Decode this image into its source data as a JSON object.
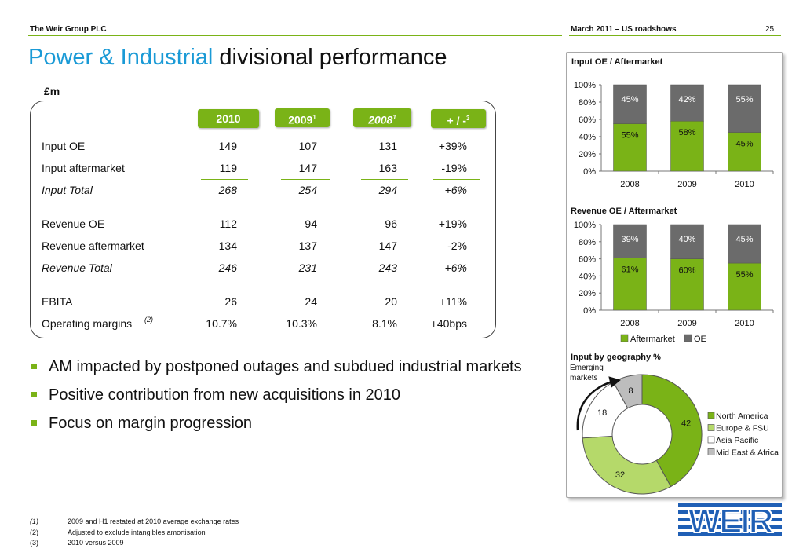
{
  "header": {
    "company": "The Weir Group PLC",
    "event": "March 2011 – US roadshows",
    "page": "25"
  },
  "title": {
    "highlight": "Power & Industrial",
    "rest": "divisional performance"
  },
  "table": {
    "units": "£m",
    "headers": [
      {
        "text": "2010",
        "sup": ""
      },
      {
        "text": "2009",
        "sup": "1"
      },
      {
        "text": "2008",
        "sup": "1"
      },
      {
        "text": "+ / -",
        "sup": "3"
      }
    ],
    "rows": [
      {
        "label": "Input OE",
        "v2010": "149",
        "v2009": "107",
        "v2008": "131",
        "change": "+39%"
      },
      {
        "label": "Input aftermarket",
        "v2010": "119",
        "v2009": "147",
        "v2008": "163",
        "change": "-19%"
      },
      {
        "label": "Input Total",
        "v2010": "268",
        "v2009": "254",
        "v2008": "294",
        "change": "+6%"
      },
      {
        "label": "Revenue OE",
        "v2010": "112",
        "v2009": "94",
        "v2008": "96",
        "change": "+19%"
      },
      {
        "label": "Revenue aftermarket",
        "v2010": "134",
        "v2009": "137",
        "v2008": "147",
        "change": "-2%"
      },
      {
        "label": "Revenue Total",
        "v2010": "246",
        "v2009": "231",
        "v2008": "243",
        "change": "+6%"
      },
      {
        "label": "EBITA",
        "v2010": "26",
        "v2009": "24",
        "v2008": "20",
        "change": "+11%"
      },
      {
        "label": "Operating margins",
        "label_sup": "(2)",
        "v2010": "10.7%",
        "v2009": "10.3%",
        "v2008": "8.1%",
        "change": "+40bps"
      }
    ]
  },
  "bullets": [
    "AM impacted by postponed outages and subdued industrial markets",
    "Positive contribution from new acquisitions in 2010",
    "Focus on margin progression"
  ],
  "colors": {
    "green": "#7ab317",
    "blue": "#1a9ad6",
    "grey": "#6b6b6b",
    "light_green": "#b5d96a",
    "light_grey": "#bdbdbd",
    "logo_blue": "#1f5fb5"
  },
  "chart_data": [
    {
      "type": "bar",
      "title": "Input OE / Aftermarket",
      "categories": [
        "2008",
        "2009",
        "2010"
      ],
      "yticks": [
        "0%",
        "20%",
        "40%",
        "60%",
        "80%",
        "100%"
      ],
      "ylim": [
        0,
        100
      ],
      "series": [
        {
          "name": "Aftermarket",
          "color": "#7ab317",
          "values": [
            55,
            58,
            45
          ],
          "labels": [
            "55%",
            "58%",
            "45%"
          ]
        },
        {
          "name": "OE",
          "color": "#6b6b6b",
          "values": [
            45,
            42,
            55
          ],
          "labels": [
            "45%",
            "42%",
            "55%"
          ]
        }
      ],
      "stacked": true
    },
    {
      "type": "bar",
      "title": "Revenue OE / Aftermarket",
      "categories": [
        "2008",
        "2009",
        "2010"
      ],
      "yticks": [
        "0%",
        "20%",
        "40%",
        "60%",
        "80%",
        "100%"
      ],
      "ylim": [
        0,
        100
      ],
      "series": [
        {
          "name": "Aftermarket",
          "color": "#7ab317",
          "values": [
            61,
            60,
            55
          ],
          "labels": [
            "61%",
            "60%",
            "55%"
          ]
        },
        {
          "name": "OE",
          "color": "#6b6b6b",
          "values": [
            39,
            40,
            45
          ],
          "labels": [
            "39%",
            "40%",
            "45%"
          ]
        }
      ],
      "stacked": true,
      "legend": [
        {
          "name": "Aftermarket",
          "color": "#7ab317"
        },
        {
          "name": "OE",
          "color": "#6b6b6b"
        }
      ]
    },
    {
      "type": "pie",
      "title": "Input by geography %",
      "annotation": "Emerging markets",
      "slices": [
        {
          "name": "North America",
          "value": 42,
          "label": "42",
          "color": "#7ab317"
        },
        {
          "name": "Europe & FSU",
          "value": 32,
          "label": "32",
          "color": "#b5d96a"
        },
        {
          "name": "Asia Pacific",
          "value": 18,
          "label": "18",
          "color": "#ffffff"
        },
        {
          "name": "Mid East & Africa",
          "value": 8,
          "label": "8",
          "color": "#bdbdbd"
        }
      ],
      "legend_position": "right"
    }
  ],
  "footnotes": [
    {
      "key": "(1)",
      "text": "2009 and H1 restated at 2010 average exchange rates"
    },
    {
      "key": "(2)",
      "text": "Adjusted to exclude intangibles amortisation"
    },
    {
      "key": "(3)",
      "text": "2010 versus 2009"
    }
  ],
  "logo": {
    "name": "weir-logo",
    "text": "WEIR"
  }
}
